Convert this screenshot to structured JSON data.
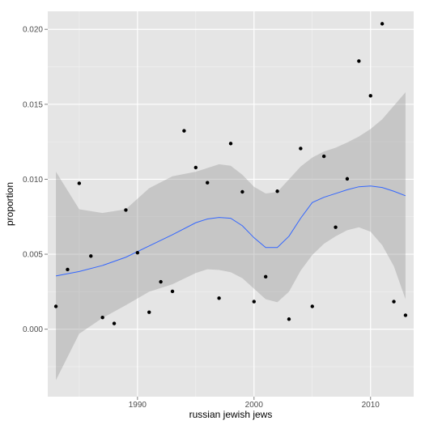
{
  "chart_data": {
    "type": "scatter",
    "title": "",
    "xlabel": "russian jewish jews",
    "ylabel": "proportion",
    "xlim": [
      1982.3,
      2013.7
    ],
    "ylim": [
      -0.0045,
      0.0212
    ],
    "x_ticks": [
      1990,
      2000,
      2010
    ],
    "x_tick_labels": [
      "1990",
      "2000",
      "2010"
    ],
    "y_ticks": [
      0.0,
      0.005,
      0.01,
      0.015,
      0.02
    ],
    "y_tick_labels": [
      "0.000",
      "0.005",
      "0.010",
      "0.015",
      "0.020"
    ],
    "grid": true,
    "points": [
      {
        "x": 1983,
        "y": 0.00152
      },
      {
        "x": 1984,
        "y": 0.00398
      },
      {
        "x": 1985,
        "y": 0.00973
      },
      {
        "x": 1986,
        "y": 0.00488
      },
      {
        "x": 1987,
        "y": 0.00078
      },
      {
        "x": 1988,
        "y": 0.00038
      },
      {
        "x": 1989,
        "y": 0.00795
      },
      {
        "x": 1990,
        "y": 0.0051
      },
      {
        "x": 1991,
        "y": 0.00113
      },
      {
        "x": 1992,
        "y": 0.00316
      },
      {
        "x": 1993,
        "y": 0.00252
      },
      {
        "x": 1994,
        "y": 0.01323
      },
      {
        "x": 1995,
        "y": 0.01078
      },
      {
        "x": 1996,
        "y": 0.00977
      },
      {
        "x": 1997,
        "y": 0.00207
      },
      {
        "x": 1998,
        "y": 0.01238
      },
      {
        "x": 1999,
        "y": 0.00916
      },
      {
        "x": 2000,
        "y": 0.00184
      },
      {
        "x": 2001,
        "y": 0.0035
      },
      {
        "x": 2002,
        "y": 0.0092
      },
      {
        "x": 2003,
        "y": 0.00067
      },
      {
        "x": 2004,
        "y": 0.01205
      },
      {
        "x": 2005,
        "y": 0.00152
      },
      {
        "x": 2006,
        "y": 0.01153
      },
      {
        "x": 2007,
        "y": 0.0068
      },
      {
        "x": 2008,
        "y": 0.01003
      },
      {
        "x": 2009,
        "y": 0.01788
      },
      {
        "x": 2010,
        "y": 0.01557
      },
      {
        "x": 2011,
        "y": 0.02037
      },
      {
        "x": 2012,
        "y": 0.00184
      },
      {
        "x": 2013,
        "y": 0.00093
      }
    ],
    "smooth_line": {
      "color": "#3366ff",
      "x": [
        1983,
        1985,
        1987,
        1989,
        1991,
        1993,
        1995,
        1996,
        1997,
        1998,
        1999,
        2000,
        2001,
        2002,
        2003,
        2004,
        2005,
        2006,
        2007,
        2008,
        2009,
        2010,
        2011,
        2012,
        2013
      ],
      "y": [
        0.00355,
        0.00385,
        0.00425,
        0.0048,
        0.00555,
        0.0063,
        0.0071,
        0.00735,
        0.00745,
        0.0074,
        0.0069,
        0.0061,
        0.00545,
        0.00545,
        0.0062,
        0.0074,
        0.00845,
        0.0088,
        0.00905,
        0.0093,
        0.0095,
        0.00955,
        0.00945,
        0.0092,
        0.0089
      ]
    },
    "confidence_band": {
      "fill": "#999999",
      "x": [
        1983,
        1985,
        1987,
        1989,
        1991,
        1993,
        1995,
        1996,
        1997,
        1998,
        1999,
        2000,
        2001,
        2002,
        2003,
        2004,
        2005,
        2006,
        2007,
        2008,
        2009,
        2010,
        2011,
        2012,
        2013
      ],
      "upper": [
        0.0105,
        0.008,
        0.00775,
        0.008,
        0.0094,
        0.0102,
        0.0105,
        0.01075,
        0.011,
        0.0109,
        0.0103,
        0.0095,
        0.00905,
        0.00915,
        0.01,
        0.01085,
        0.01145,
        0.01185,
        0.0121,
        0.01245,
        0.01285,
        0.01335,
        0.014,
        0.0149,
        0.0158
      ],
      "lower": [
        -0.0034,
        -0.0003,
        0.00075,
        0.0016,
        0.0025,
        0.003,
        0.00375,
        0.004,
        0.00395,
        0.0038,
        0.0034,
        0.0027,
        0.002,
        0.0018,
        0.0025,
        0.0039,
        0.00495,
        0.0057,
        0.0062,
        0.0066,
        0.0068,
        0.0065,
        0.0056,
        0.0042,
        0.002
      ]
    },
    "colors": {
      "panel": "#e5e5e5",
      "grid_major": "#ffffff",
      "grid_minor": "#f2f2f2",
      "points": "#000000"
    }
  }
}
